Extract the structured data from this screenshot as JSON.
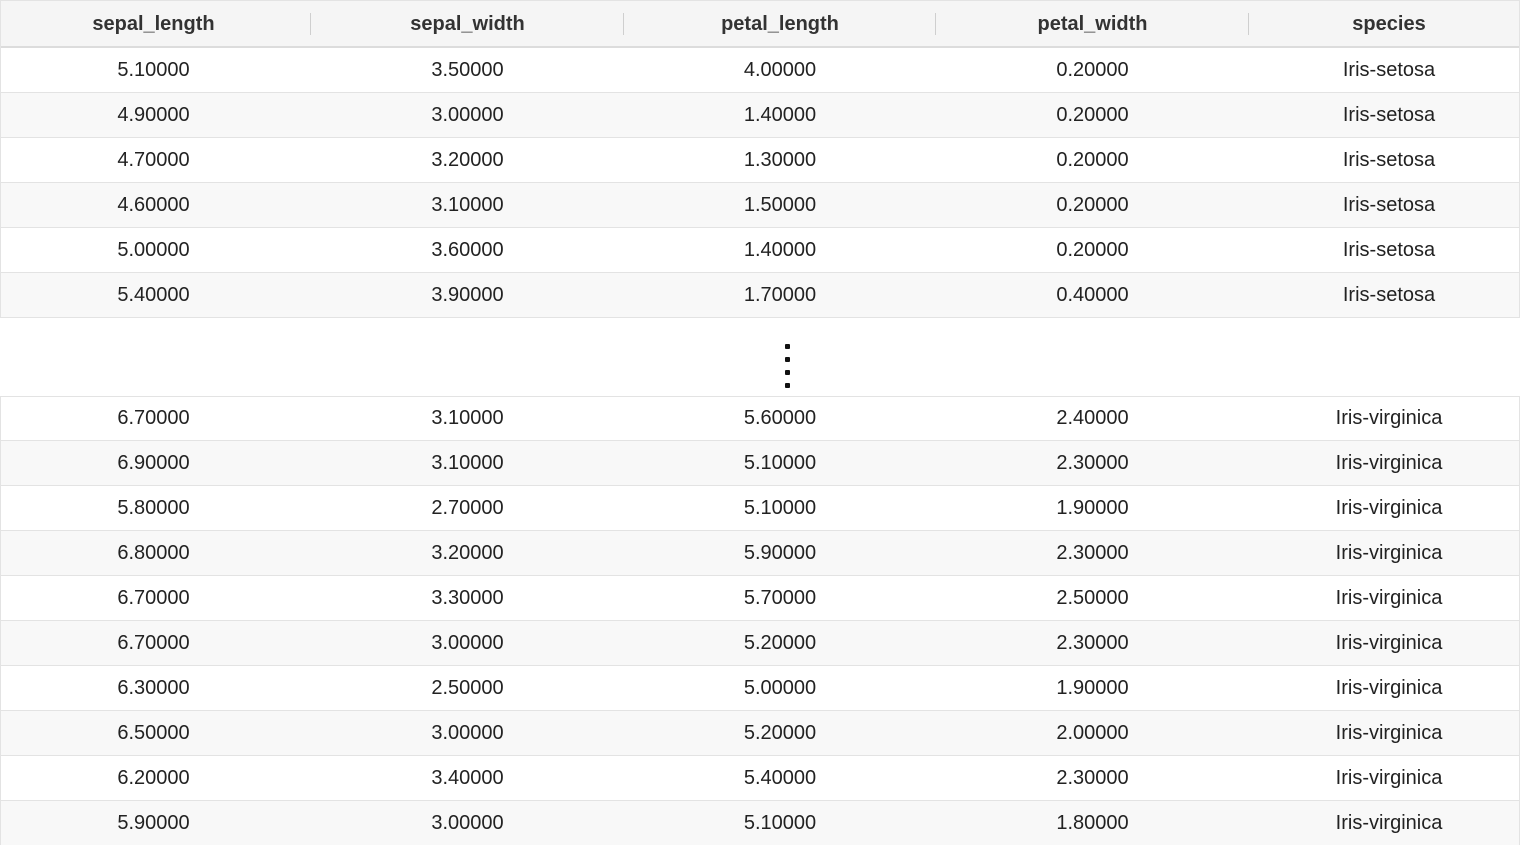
{
  "columns": [
    "sepal_length",
    "sepal_width",
    "petal_length",
    "petal_width",
    "species"
  ],
  "top_rows": [
    [
      "5.10000",
      "3.50000",
      "4.00000",
      "0.20000",
      "Iris-setosa"
    ],
    [
      "4.90000",
      "3.00000",
      "1.40000",
      "0.20000",
      "Iris-setosa"
    ],
    [
      "4.70000",
      "3.20000",
      "1.30000",
      "0.20000",
      "Iris-setosa"
    ],
    [
      "4.60000",
      "3.10000",
      "1.50000",
      "0.20000",
      "Iris-setosa"
    ],
    [
      "5.00000",
      "3.60000",
      "1.40000",
      "0.20000",
      "Iris-setosa"
    ],
    [
      "5.40000",
      "3.90000",
      "1.70000",
      "0.40000",
      "Iris-setosa"
    ]
  ],
  "bottom_rows": [
    [
      "6.70000",
      "3.10000",
      "5.60000",
      "2.40000",
      "Iris-virginica"
    ],
    [
      "6.90000",
      "3.10000",
      "5.10000",
      "2.30000",
      "Iris-virginica"
    ],
    [
      "5.80000",
      "2.70000",
      "5.10000",
      "1.90000",
      "Iris-virginica"
    ],
    [
      "6.80000",
      "3.20000",
      "5.90000",
      "2.30000",
      "Iris-virginica"
    ],
    [
      "6.70000",
      "3.30000",
      "5.70000",
      "2.50000",
      "Iris-virginica"
    ],
    [
      "6.70000",
      "3.00000",
      "5.20000",
      "2.30000",
      "Iris-virginica"
    ],
    [
      "6.30000",
      "2.50000",
      "5.00000",
      "1.90000",
      "Iris-virginica"
    ],
    [
      "6.50000",
      "3.00000",
      "5.20000",
      "2.00000",
      "Iris-virginica"
    ],
    [
      "6.20000",
      "3.40000",
      "5.40000",
      "2.30000",
      "Iris-virginica"
    ],
    [
      "5.90000",
      "3.00000",
      "5.10000",
      "1.80000",
      "Iris-virginica"
    ]
  ],
  "truncation_icon": "vertical-ellipsis-icon"
}
